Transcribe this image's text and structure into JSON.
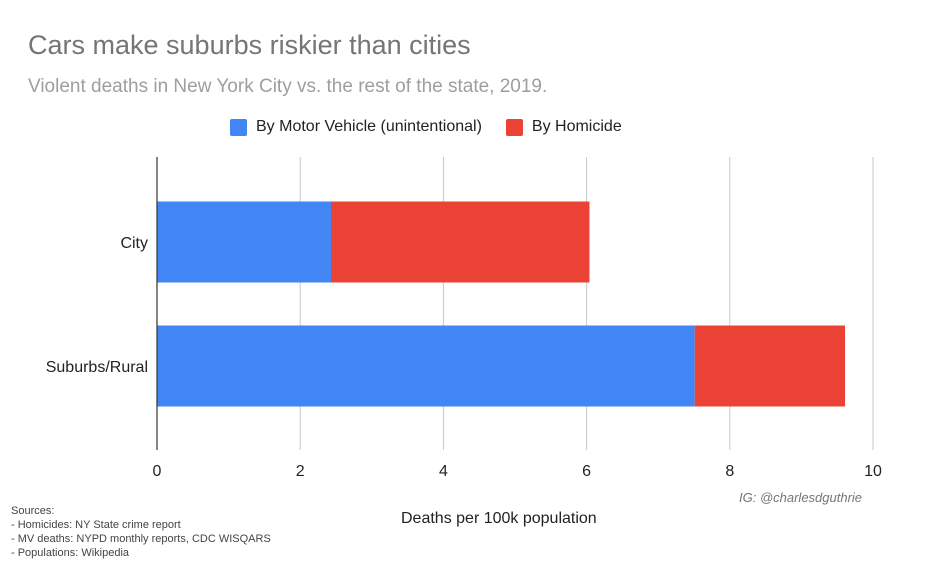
{
  "chart_data": {
    "type": "bar",
    "orientation": "horizontal",
    "stacked": true,
    "title": "Cars make suburbs riskier than cities",
    "subtitle": "Violent deaths in New York City vs. the rest of the state, 2019.",
    "categories": [
      "City",
      "Suburbs/Rural"
    ],
    "series": [
      {
        "name": "By Motor Vehicle (unintentional)",
        "color": "#4285f4",
        "values": [
          2.43,
          7.51
        ]
      },
      {
        "name": "By Homicide",
        "color": "#ea4335",
        "values": [
          3.61,
          2.1
        ]
      }
    ],
    "xlabel": "Deaths per 100k population",
    "ylabel": "",
    "xlim": [
      0,
      10
    ],
    "xticks": [
      "0",
      "2",
      "4",
      "6",
      "8",
      "10"
    ],
    "grid": true,
    "legend_position": "top"
  },
  "credit": "IG: @charlesdguthrie",
  "sources": [
    "Sources:",
    "- Homicides: NY State crime report",
    "- MV deaths: NYPD monthly reports, CDC WISQARS",
    "- Populations: Wikipedia"
  ]
}
